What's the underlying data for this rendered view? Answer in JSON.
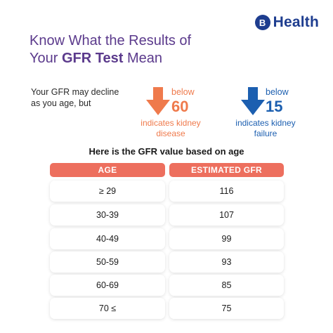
{
  "logo": {
    "mark": "B",
    "text": "Health"
  },
  "headline": {
    "line1": "Know What the Results of",
    "line2_pre": "Your ",
    "line2_bold": "GFR Test",
    "line2_post": " Mean"
  },
  "intro": "Your GFR may decline as you age, but",
  "threshold_kidney_disease": {
    "label": "below",
    "value": "60",
    "note": "indicates kidney disease",
    "color": "#ef7a4c",
    "icon": "arrow-down-icon"
  },
  "threshold_kidney_failure": {
    "label": "below",
    "value": "15",
    "note": "indicates kidney failure",
    "color": "#1c5fb0",
    "icon": "arrow-down-icon"
  },
  "table": {
    "title": "Here is the GFR value based on age",
    "headers": [
      "AGE",
      "ESTIMATED GFR"
    ],
    "header_color": "#ed6f5e",
    "rows": [
      {
        "age": "≥ 29",
        "gfr": "116"
      },
      {
        "age": "30-39",
        "gfr": "107"
      },
      {
        "age": "40-49",
        "gfr": "99"
      },
      {
        "age": "50-59",
        "gfr": "93"
      },
      {
        "age": "60-69",
        "gfr": "85"
      },
      {
        "age": "70 ≤",
        "gfr": "75"
      }
    ]
  }
}
